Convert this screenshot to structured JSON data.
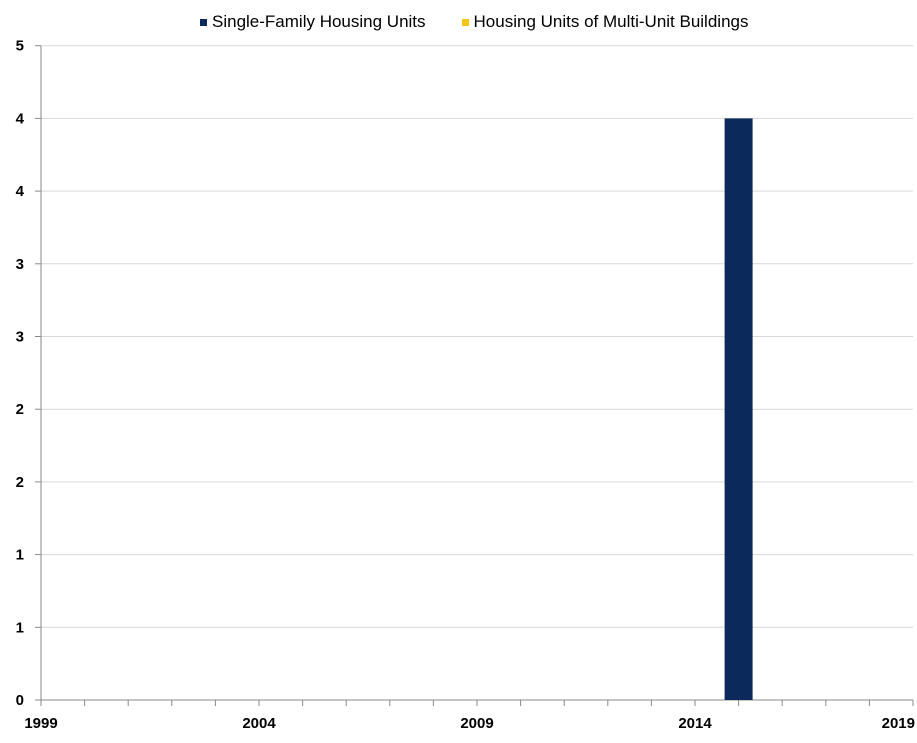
{
  "chart_data": {
    "type": "bar",
    "x_tick_labels": [
      "1999",
      "2004",
      "2009",
      "2014",
      "2019"
    ],
    "y_tick_labels": [
      "0",
      "1",
      "1",
      "2",
      "2",
      "3",
      "3",
      "4",
      "4",
      "5"
    ],
    "ylim": [
      0,
      4.5
    ],
    "xlim": [
      1999,
      2019
    ],
    "grid": true,
    "legend_position": "top",
    "series": [
      {
        "name": "Single-Family Housing Units",
        "color": "#0b2a5b",
        "points": [
          {
            "x": 2015,
            "y": 4
          }
        ]
      },
      {
        "name": "Housing Units of Multi-Unit Buildings",
        "color": "#f5c518",
        "points": []
      }
    ]
  }
}
